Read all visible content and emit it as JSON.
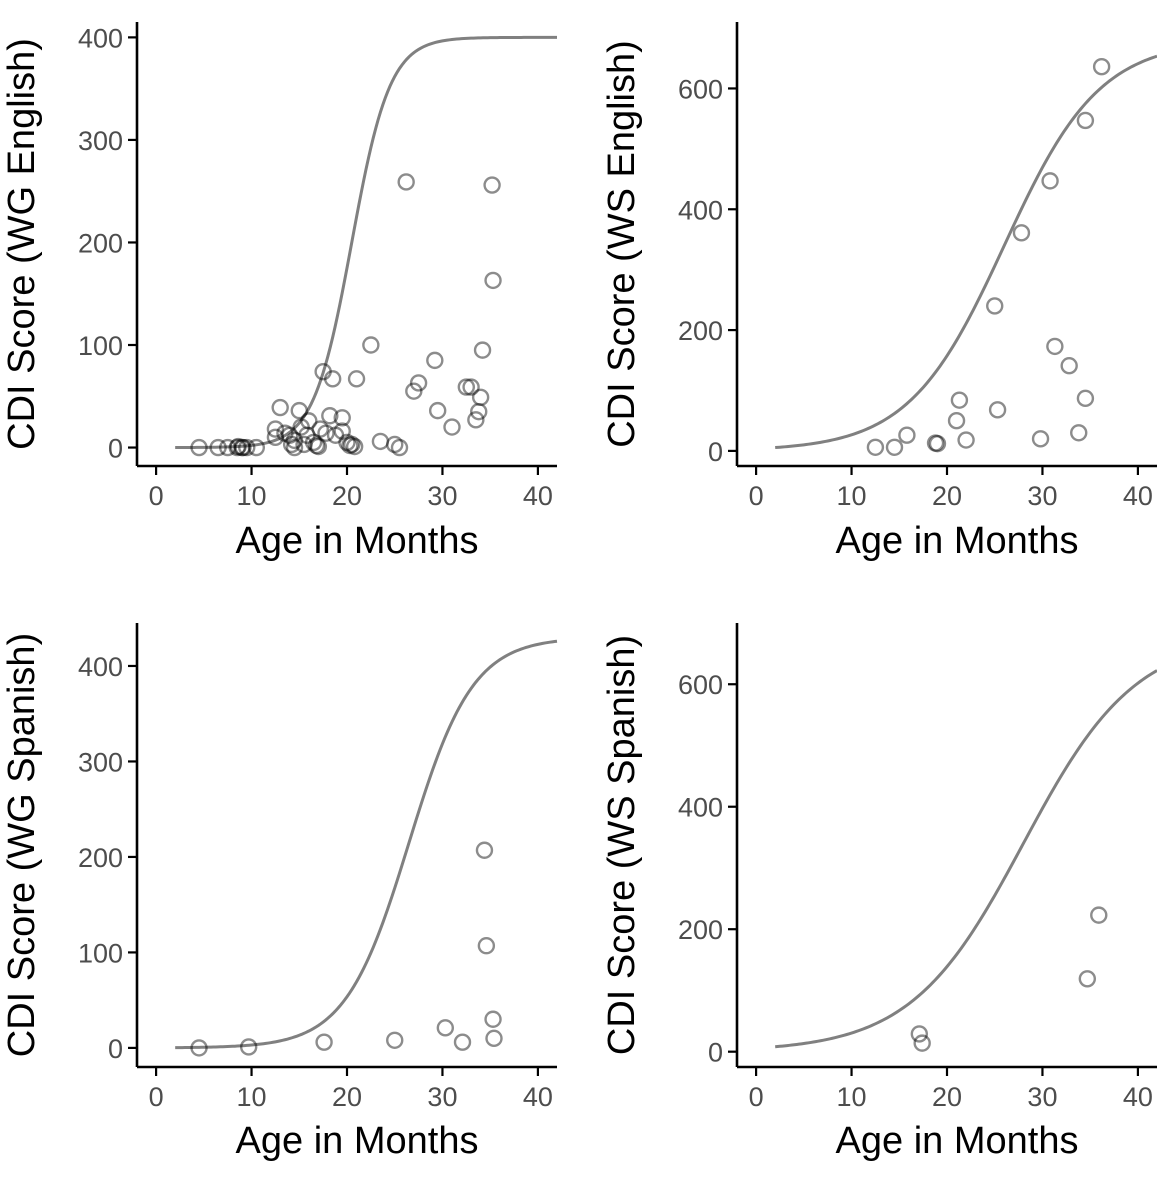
{
  "colors": {
    "curve": "#808080",
    "points": "#000000",
    "points_opacity": 0.45
  },
  "chart_data": [
    {
      "type": "scatter",
      "xlabel": "Age in Months",
      "ylabel": "CDI Score (WG English)",
      "xlim": [
        -2,
        42
      ],
      "ylim": [
        -18,
        415
      ],
      "xticks": [
        0,
        10,
        20,
        30,
        40
      ],
      "yticks": [
        0,
        100,
        200,
        300,
        400
      ],
      "curve": {
        "type": "logistic",
        "k": 400,
        "x0": 20.5,
        "rate": 0.5,
        "xrange": [
          2,
          42
        ]
      },
      "points": [
        [
          4.5,
          0
        ],
        [
          6.5,
          0
        ],
        [
          7.5,
          0
        ],
        [
          8.5,
          0
        ],
        [
          9,
          0
        ],
        [
          9.5,
          0
        ],
        [
          10.5,
          0
        ],
        [
          8.6,
          1
        ],
        [
          9.1,
          0
        ],
        [
          12.5,
          10
        ],
        [
          12.5,
          18
        ],
        [
          13,
          39
        ],
        [
          13.5,
          14
        ],
        [
          14,
          12
        ],
        [
          14.2,
          3
        ],
        [
          14.5,
          7
        ],
        [
          14.5,
          0
        ],
        [
          15,
          36
        ],
        [
          15.2,
          20
        ],
        [
          15.5,
          3
        ],
        [
          15.8,
          12
        ],
        [
          16,
          26
        ],
        [
          16.5,
          5
        ],
        [
          16.8,
          2
        ],
        [
          17,
          1
        ],
        [
          17.2,
          18
        ],
        [
          17.5,
          74
        ],
        [
          17.8,
          14
        ],
        [
          18.2,
          31
        ],
        [
          18.5,
          67
        ],
        [
          18.8,
          12
        ],
        [
          19.5,
          29
        ],
        [
          19.5,
          16
        ],
        [
          20,
          5
        ],
        [
          20.3,
          2
        ],
        [
          20.5,
          3
        ],
        [
          20.8,
          1
        ],
        [
          21,
          67
        ],
        [
          22.5,
          100
        ],
        [
          23.5,
          6
        ],
        [
          25,
          3
        ],
        [
          25.5,
          0
        ],
        [
          26.2,
          259
        ],
        [
          27,
          55
        ],
        [
          27.5,
          63
        ],
        [
          29.2,
          85
        ],
        [
          29.5,
          36
        ],
        [
          31,
          20
        ],
        [
          32.5,
          59
        ],
        [
          33,
          59
        ],
        [
          33.5,
          27
        ],
        [
          33.8,
          35
        ],
        [
          34,
          49
        ],
        [
          34.2,
          95
        ],
        [
          35.2,
          256
        ],
        [
          35.3,
          163
        ]
      ]
    },
    {
      "type": "scatter",
      "xlabel": "Age in Months",
      "ylabel": "CDI Score (WS English)",
      "xlim": [
        -2,
        42
      ],
      "ylim": [
        -25,
        710
      ],
      "xticks": [
        0,
        10,
        20,
        30,
        40
      ],
      "yticks": [
        0,
        200,
        400,
        600
      ],
      "curve": {
        "type": "logistic",
        "k": 680,
        "x0": 26,
        "rate": 0.2,
        "xrange": [
          2,
          42
        ]
      },
      "points": [
        [
          12.5,
          6
        ],
        [
          14.5,
          6
        ],
        [
          15.8,
          26
        ],
        [
          18.8,
          13
        ],
        [
          19,
          12
        ],
        [
          21,
          50
        ],
        [
          21.3,
          84
        ],
        [
          22,
          18
        ],
        [
          25,
          240
        ],
        [
          25.3,
          68
        ],
        [
          27.8,
          361
        ],
        [
          29.8,
          20
        ],
        [
          30.8,
          447
        ],
        [
          31.3,
          173
        ],
        [
          32.8,
          141
        ],
        [
          33.8,
          30
        ],
        [
          34.5,
          87
        ],
        [
          34.5,
          547
        ],
        [
          36.2,
          636
        ]
      ]
    },
    {
      "type": "scatter",
      "xlabel": "Age in Months",
      "ylabel": "CDI Score (WG Spanish)",
      "xlim": [
        -2,
        42
      ],
      "ylim": [
        -20,
        445
      ],
      "xticks": [
        0,
        10,
        20,
        30,
        40
      ],
      "yticks": [
        0,
        100,
        200,
        300,
        400
      ],
      "curve": {
        "type": "logistic",
        "k": 430,
        "x0": 26.5,
        "rate": 0.3,
        "xrange": [
          2,
          42
        ]
      },
      "points": [
        [
          4.5,
          0
        ],
        [
          9.7,
          1
        ],
        [
          17.6,
          6
        ],
        [
          25,
          8
        ],
        [
          30.3,
          21
        ],
        [
          32.1,
          6
        ],
        [
          34.4,
          207
        ],
        [
          34.6,
          107
        ],
        [
          35.3,
          30
        ],
        [
          35.4,
          10
        ]
      ]
    },
    {
      "type": "scatter",
      "xlabel": "Age in Months",
      "ylabel": "CDI Score (WS Spanish)",
      "xlim": [
        -2,
        42
      ],
      "ylim": [
        -25,
        700
      ],
      "xticks": [
        0,
        10,
        20,
        30,
        40
      ],
      "yticks": [
        0,
        200,
        400,
        600
      ],
      "curve": {
        "type": "logistic",
        "k": 680,
        "x0": 28,
        "rate": 0.17,
        "xrange": [
          2,
          42
        ]
      },
      "points": [
        [
          17.1,
          29
        ],
        [
          17.4,
          14
        ],
        [
          34.7,
          119
        ],
        [
          35.9,
          223
        ]
      ]
    }
  ]
}
